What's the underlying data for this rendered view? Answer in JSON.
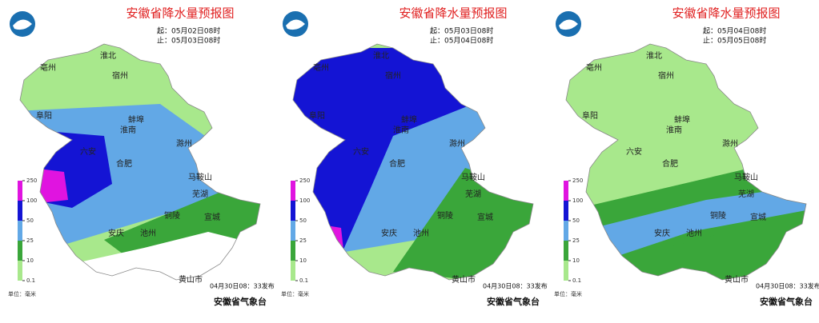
{
  "legend": {
    "ticks": [
      250,
      100,
      50,
      25,
      10,
      0.1
    ],
    "unit": "单位：毫米"
  },
  "panels": [
    {
      "title": "安徽省降水量预报图",
      "start": "起：05月02日08时",
      "end": "止：05月03日08时",
      "issued": "04月30日08：33发布",
      "issuer": "安徽省气象台"
    },
    {
      "title": "安徽省降水量预报图",
      "start": "起：05月03日08时",
      "end": "止：05月04日08时",
      "issued": "04月30日08：33发布",
      "issuer": "安徽省气象台"
    },
    {
      "title": "安徽省降水量预报图",
      "start": "起：05月04日08时",
      "end": "止：05月05日08时",
      "issued": "04月30日08：33发布",
      "issuer": "安徽省气象台"
    }
  ],
  "cities": [
    "淮北",
    "宿州",
    "亳州",
    "阜阳",
    "蚌埠",
    "淮南",
    "滁州",
    "六安",
    "合肥",
    "马鞍山",
    "芜湖",
    "铜陵",
    "宣城",
    "安庆",
    "池州",
    "黄山市"
  ]
}
